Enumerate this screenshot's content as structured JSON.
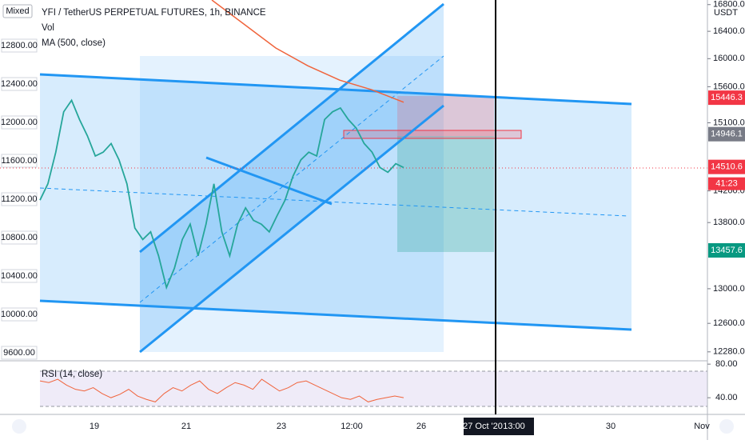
{
  "header": {
    "scale_mode": "Mixed",
    "currency": "USDT"
  },
  "legend": {
    "title": "YFI / TetherUS PERPETUAL FUTURES, 1h, BINANCE",
    "volume": "Vol",
    "ma": "MA (500, close)",
    "rsi": "RSI (14, close)"
  },
  "chart_data": {
    "type": "line",
    "series": [
      {
        "name": "YFI / TetherUS PERPETUAL FUTURES, 1h, BINANCE",
        "color": "#26a69a",
        "values": [
          11190,
          11360,
          11690,
          12110,
          12230,
          12030,
          11860,
          11650,
          11690,
          11780,
          11610,
          11360,
          10900,
          10780,
          10860,
          10610,
          10280,
          10480,
          10780,
          10940,
          10610,
          10940,
          11360,
          10860,
          10610,
          10940,
          11110,
          10980,
          10940,
          10860,
          11030,
          11190,
          11440,
          11610,
          11690,
          11650,
          12030,
          12110,
          12150,
          12030,
          11940,
          11780,
          11690,
          11530,
          11480,
          11570,
          11530
        ]
      },
      {
        "name": "MA (500, close)",
        "color": "#f0643c",
        "values": [
          13275,
          13025,
          12775,
          12590,
          12440,
          12340,
          12210
        ]
      }
    ],
    "ylim": [
      9525,
      13275
    ],
    "yticks": [
      {
        "value": 12800,
        "label": "12800.00"
      },
      {
        "value": 12400,
        "label": "12400.00"
      },
      {
        "value": 12000,
        "label": "12000.00"
      },
      {
        "value": 11600,
        "label": "11600.00"
      },
      {
        "value": 11200,
        "label": "11200.00"
      },
      {
        "value": 10800,
        "label": "10800.00"
      },
      {
        "value": 10400,
        "label": "10400.00"
      },
      {
        "value": 10000,
        "label": "10000.00"
      },
      {
        "value": 9600,
        "label": "9600.00"
      }
    ],
    "y2lim": [
      12190,
      16870
    ],
    "y2log": true,
    "y2ticks": [
      {
        "value": 16800,
        "label": "16800.0"
      },
      {
        "value": 16400,
        "label": "16400.0"
      },
      {
        "value": 16000,
        "label": "16000.0"
      },
      {
        "value": 15600,
        "label": "15600.0"
      },
      {
        "value": 15100,
        "label": "15100.0"
      },
      {
        "value": 14200,
        "label": "14200.0"
      },
      {
        "value": 13800,
        "label": "13800.0"
      },
      {
        "value": 13000,
        "label": "13000.0"
      },
      {
        "value": 12600,
        "label": "12600.0"
      },
      {
        "value": 12280,
        "label": "12280.0"
      }
    ],
    "price_markers": [
      {
        "value": 15446.3,
        "label": "15446.3",
        "color": "#f23645"
      },
      {
        "value": 14946.1,
        "label": "14946.1",
        "color": "#787b86"
      },
      {
        "value": 14510.6,
        "label": "14510.6",
        "color": "#f23645"
      },
      {
        "value": 13457.6,
        "label": "13457.6",
        "color": "#089981"
      }
    ],
    "countdown": "41:23",
    "rsi": {
      "color": "#f0643c",
      "values": [
        60,
        58,
        62,
        55,
        50,
        48,
        52,
        45,
        40,
        44,
        50,
        42,
        38,
        35,
        45,
        52,
        48,
        55,
        60,
        50,
        45,
        52,
        58,
        55,
        50,
        62,
        55,
        48,
        52,
        58,
        60,
        55,
        50,
        45,
        40,
        38,
        42,
        35,
        38,
        40,
        42,
        40
      ],
      "ylim": [
        23,
        83
      ],
      "yticks": [
        {
          "value": 80,
          "label": "80.00"
        },
        {
          "value": 40,
          "label": "40.00"
        }
      ]
    },
    "x_labels": [
      "19",
      "21",
      "23",
      "12:00",
      "26",
      "27 Oct '20",
      "13:00",
      "30",
      "Nov"
    ]
  }
}
